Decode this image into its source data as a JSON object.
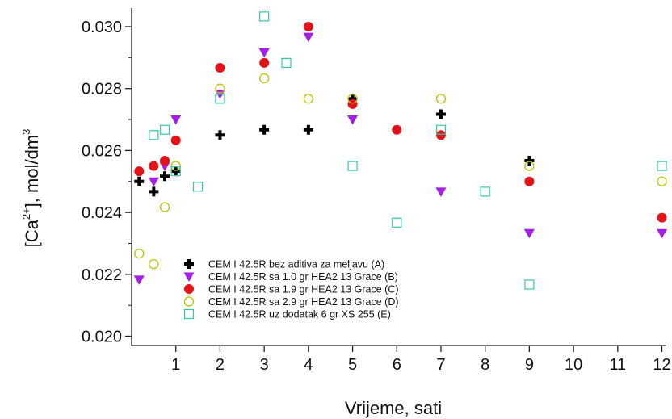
{
  "chart_data": {
    "type": "scatter",
    "xlabel": "Vrijeme, sati",
    "ylabel": "[Ca2+], mol/dm3",
    "ylabel_parts": {
      "prefix": "[Ca",
      "sup": "2+",
      "mid": "], mol/dm",
      "sup2": "3"
    },
    "xlim": [
      0,
      12.1
    ],
    "ylim": [
      0.0197,
      0.0306
    ],
    "x_ticks": [
      1,
      2,
      3,
      4,
      5,
      6,
      7,
      8,
      9,
      10,
      11,
      12
    ],
    "y_ticks": [
      0.02,
      0.022,
      0.024,
      0.026,
      0.028,
      0.03
    ],
    "y_tick_labels": [
      "0.020",
      "0.022",
      "0.024",
      "0.026",
      "0.028",
      "0.030"
    ],
    "grid": false,
    "legend_position": "bottom-left",
    "series": [
      {
        "name": "CEM I 42.5R bez aditiva za meljavu (A)",
        "marker": "plus-filled",
        "color": "#000000",
        "points": [
          [
            0.17,
            0.025
          ],
          [
            0.5,
            0.02467
          ],
          [
            0.75,
            0.02517
          ],
          [
            1.0,
            0.02533
          ],
          [
            2.0,
            0.0265
          ],
          [
            3.0,
            0.02667
          ],
          [
            4.0,
            0.02667
          ],
          [
            5.0,
            0.02767
          ],
          [
            7.0,
            0.02717
          ],
          [
            9.0,
            0.02567
          ]
        ]
      },
      {
        "name": "CEM I 42.5R sa 1.0 gr HEA2 13 Grace (B)",
        "marker": "triangle-down",
        "color": "#a31ee6",
        "points": [
          [
            0.17,
            0.02183
          ],
          [
            0.5,
            0.025
          ],
          [
            0.75,
            0.0255
          ],
          [
            1.0,
            0.027
          ],
          [
            2.0,
            0.02783
          ],
          [
            3.0,
            0.02917
          ],
          [
            4.0,
            0.02967
          ],
          [
            5.0,
            0.027
          ],
          [
            7.0,
            0.02467
          ],
          [
            9.0,
            0.02333
          ],
          [
            12.0,
            0.02333
          ]
        ]
      },
      {
        "name": "CEM I 42.5R sa 1.9 gr HEA2 13 Grace (C)",
        "marker": "circle-filled",
        "color": "#e3131a",
        "points": [
          [
            0.17,
            0.02533
          ],
          [
            0.5,
            0.0255
          ],
          [
            0.75,
            0.02567
          ],
          [
            1.0,
            0.02633
          ],
          [
            2.0,
            0.02867
          ],
          [
            3.0,
            0.02883
          ],
          [
            4.0,
            0.03
          ],
          [
            5.0,
            0.0275
          ],
          [
            6.0,
            0.02667
          ],
          [
            7.0,
            0.0265
          ],
          [
            9.0,
            0.025
          ],
          [
            12.0,
            0.02383
          ]
        ]
      },
      {
        "name": "CEM I 42.5R sa 2.9 gr HEA2 13 Grace (D)",
        "marker": "circle-open",
        "color": "#b8c400",
        "points": [
          [
            0.17,
            0.02267
          ],
          [
            0.5,
            0.02233
          ],
          [
            0.75,
            0.02417
          ],
          [
            1.0,
            0.0255
          ],
          [
            2.0,
            0.028
          ],
          [
            3.0,
            0.02833
          ],
          [
            4.0,
            0.02767
          ],
          [
            5.0,
            0.02767
          ],
          [
            7.0,
            0.02767
          ],
          [
            9.0,
            0.0255
          ],
          [
            12.0,
            0.025
          ]
        ]
      },
      {
        "name": "CEM I 42.5R uz dodatak 6 gr XS 255 (E)",
        "marker": "square-open",
        "color": "#35c9a2",
        "points": [
          [
            0.5,
            0.0265
          ],
          [
            0.75,
            0.02667
          ],
          [
            1.0,
            0.02533
          ],
          [
            1.5,
            0.02483
          ],
          [
            2.0,
            0.02767
          ],
          [
            3.0,
            0.03033
          ],
          [
            3.5,
            0.02883
          ],
          [
            5.0,
            0.0255
          ],
          [
            6.0,
            0.02367
          ],
          [
            7.0,
            0.02667
          ],
          [
            8.0,
            0.02467
          ],
          [
            9.0,
            0.02167
          ],
          [
            12.0,
            0.0255
          ]
        ]
      }
    ]
  }
}
